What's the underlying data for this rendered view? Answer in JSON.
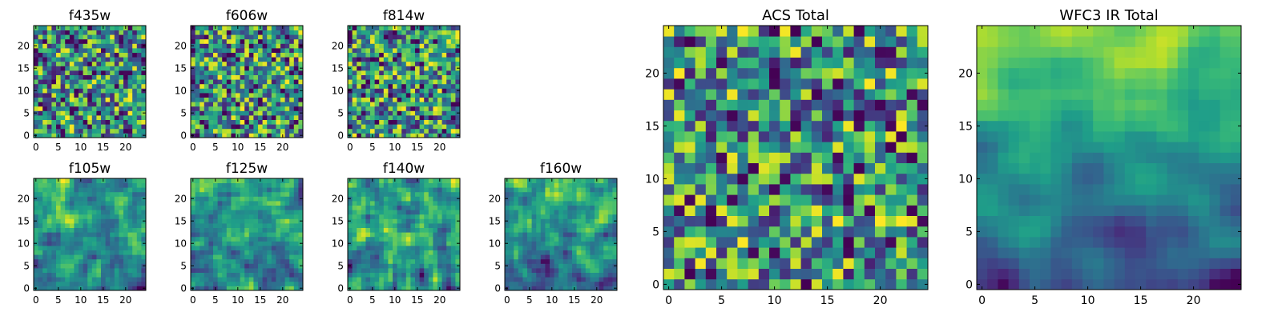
{
  "figure": {
    "background": "#ffffff",
    "axis_color": "#000000"
  },
  "chart_data": [
    {
      "id": "f435w",
      "type": "heatmap",
      "title": "f435w",
      "cells": 25,
      "xticks": [
        0,
        5,
        10,
        15,
        20
      ],
      "yticks": [
        0,
        5,
        10,
        15,
        20
      ],
      "xlim": [
        -0.5,
        24.5
      ],
      "ylim": [
        -0.5,
        24.5
      ],
      "colormap": "viridis",
      "seed": 11,
      "smooth": 0,
      "trend": 0
    },
    {
      "id": "f606w",
      "type": "heatmap",
      "title": "f606w",
      "cells": 25,
      "xticks": [
        0,
        5,
        10,
        15,
        20
      ],
      "yticks": [
        0,
        5,
        10,
        15,
        20
      ],
      "xlim": [
        -0.5,
        24.5
      ],
      "ylim": [
        -0.5,
        24.5
      ],
      "colormap": "viridis",
      "seed": 23,
      "smooth": 0,
      "trend": 0
    },
    {
      "id": "f814w",
      "type": "heatmap",
      "title": "f814w",
      "cells": 25,
      "xticks": [
        0,
        5,
        10,
        15,
        20
      ],
      "yticks": [
        0,
        5,
        10,
        15,
        20
      ],
      "xlim": [
        -0.5,
        24.5
      ],
      "ylim": [
        -0.5,
        24.5
      ],
      "colormap": "viridis",
      "seed": 37,
      "smooth": 0,
      "trend": 0
    },
    {
      "id": "f105w",
      "type": "heatmap",
      "title": "f105w",
      "cells": 25,
      "xticks": [
        0,
        5,
        10,
        15,
        20
      ],
      "yticks": [
        0,
        5,
        10,
        15,
        20
      ],
      "xlim": [
        -0.5,
        24.5
      ],
      "ylim": [
        -0.5,
        24.5
      ],
      "colormap": "viridis",
      "seed": 41,
      "smooth": 1,
      "trend": 0.15
    },
    {
      "id": "f125w",
      "type": "heatmap",
      "title": "f125w",
      "cells": 25,
      "xticks": [
        0,
        5,
        10,
        15,
        20
      ],
      "yticks": [
        0,
        5,
        10,
        15,
        20
      ],
      "xlim": [
        -0.5,
        24.5
      ],
      "ylim": [
        -0.5,
        24.5
      ],
      "colormap": "viridis",
      "seed": 53,
      "smooth": 1,
      "trend": 0.15
    },
    {
      "id": "f140w",
      "type": "heatmap",
      "title": "f140w",
      "cells": 25,
      "xticks": [
        0,
        5,
        10,
        15,
        20
      ],
      "yticks": [
        0,
        5,
        10,
        15,
        20
      ],
      "xlim": [
        -0.5,
        24.5
      ],
      "ylim": [
        -0.5,
        24.5
      ],
      "colormap": "viridis",
      "seed": 67,
      "smooth": 1,
      "trend": 0.1
    },
    {
      "id": "f160w",
      "type": "heatmap",
      "title": "f160w",
      "cells": 25,
      "xticks": [
        0,
        5,
        10,
        15,
        20
      ],
      "yticks": [
        0,
        5,
        10,
        15,
        20
      ],
      "xlim": [
        -0.5,
        24.5
      ],
      "ylim": [
        -0.5,
        24.5
      ],
      "colormap": "viridis",
      "seed": 79,
      "smooth": 1,
      "trend": 0.3
    },
    {
      "id": "acs-total",
      "type": "heatmap",
      "title": "ACS Total",
      "cells": 25,
      "xticks": [
        0,
        5,
        10,
        15,
        20
      ],
      "yticks": [
        0,
        5,
        10,
        15,
        20
      ],
      "xlim": [
        -0.5,
        24.5
      ],
      "ylim": [
        -0.5,
        24.5
      ],
      "colormap": "viridis",
      "seed": 97,
      "smooth": 0,
      "trend": 0
    },
    {
      "id": "wfc3-ir-total",
      "type": "heatmap",
      "title": "WFC3 IR Total",
      "cells": 25,
      "xticks": [
        0,
        5,
        10,
        15,
        20
      ],
      "yticks": [
        0,
        5,
        10,
        15,
        20
      ],
      "xlim": [
        -0.5,
        24.5
      ],
      "ylim": [
        -0.5,
        24.5
      ],
      "colormap": "viridis",
      "seed": 131,
      "smooth": 2,
      "trend": 0.55
    }
  ]
}
